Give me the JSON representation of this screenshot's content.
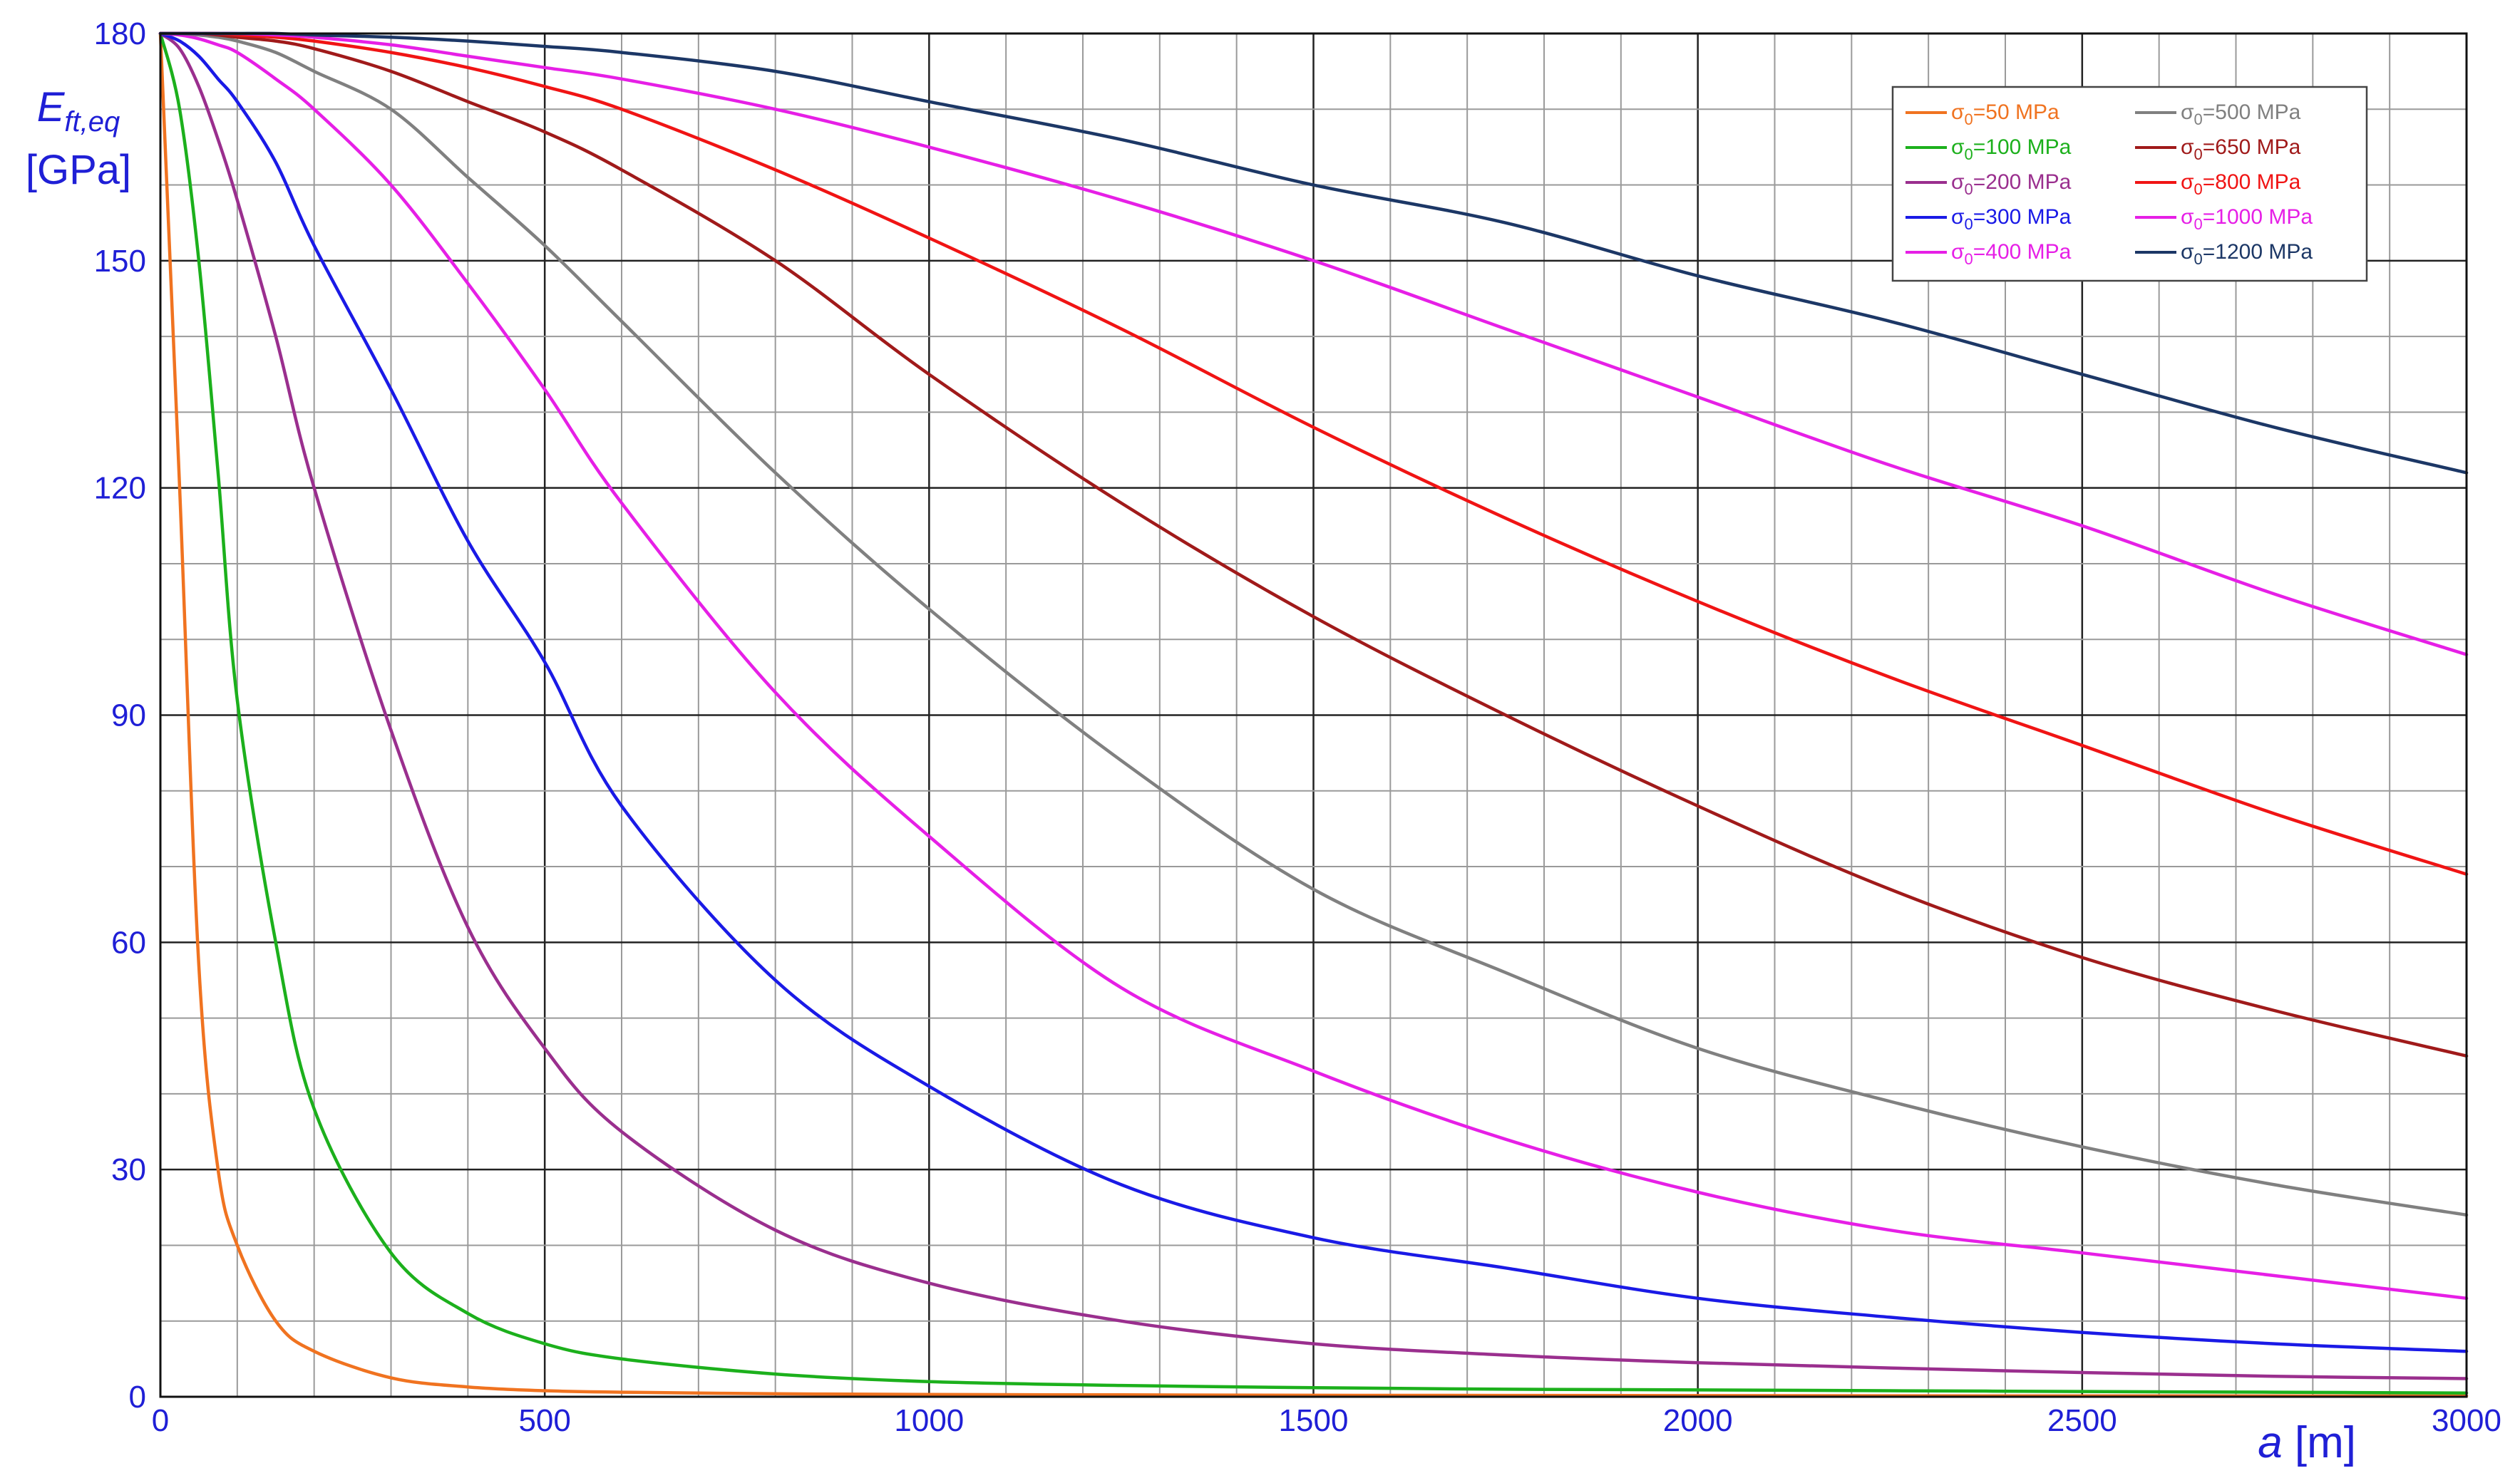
{
  "chart_data": {
    "type": "line",
    "xlabel": {
      "var": "a",
      "unit": " [m]"
    },
    "ylabel": {
      "var": "E",
      "sub": "ft,eq",
      "unit": "[GPa]"
    },
    "xlim": [
      0,
      3000
    ],
    "ylim": [
      0,
      180
    ],
    "x_ticks": [
      "0",
      "500",
      "1000",
      "1500",
      "2000",
      "2500",
      "3000"
    ],
    "y_ticks": [
      "0",
      "30",
      "60",
      "90",
      "120",
      "150",
      "180"
    ],
    "grid": true,
    "legend_position": "top-right",
    "x": [
      0,
      25,
      50,
      75,
      100,
      150,
      200,
      300,
      400,
      500,
      600,
      800,
      1000,
      1250,
      1500,
      1750,
      2000,
      2250,
      2500,
      2750,
      3000
    ],
    "series": [
      {
        "name": "σ0=50 MPa",
        "label_main": "σ",
        "label_sub": "0",
        "label_rest": "=50 MPa",
        "color": "#f07320",
        "values": [
          180,
          120,
          57,
          30,
          20,
          10,
          6,
          2.5,
          1.3,
          0.8,
          0.6,
          0.4,
          0.3,
          0.25,
          0.2,
          0.18,
          0.15,
          0.13,
          0.12,
          0.1,
          0.1
        ]
      },
      {
        "name": "σ0=100 MPa",
        "label_main": "σ",
        "label_sub": "0",
        "label_rest": "=100 MPa",
        "color": "#1cb01c",
        "values": [
          180,
          170,
          150,
          122,
          92,
          60,
          38,
          19,
          11,
          7,
          5,
          3,
          2,
          1.5,
          1.2,
          1.0,
          0.9,
          0.8,
          0.7,
          0.6,
          0.5
        ]
      },
      {
        "name": "σ0=200 MPa",
        "label_main": "σ",
        "label_sub": "0",
        "label_rest": "=200 MPa",
        "color": "#9a2f8e",
        "values": [
          180,
          178,
          173,
          166,
          158,
          140,
          120,
          88,
          62,
          46,
          35,
          22,
          15,
          10,
          7,
          5.5,
          4.5,
          3.8,
          3.2,
          2.7,
          2.4
        ]
      },
      {
        "name": "σ0=300 MPa",
        "label_main": "σ",
        "label_sub": "0",
        "label_rest": "=300 MPa",
        "color": "#1a1ae6",
        "values": [
          180,
          179,
          177,
          174,
          171,
          163,
          152,
          133,
          113,
          97,
          78,
          55,
          41,
          28,
          21,
          17,
          13,
          10.5,
          8.5,
          7,
          6
        ]
      },
      {
        "name": "σ0=400 MPa",
        "label_main": "σ",
        "label_sub": "0",
        "label_rest": "=400 MPa",
        "color": "#e61fe6",
        "values": [
          180,
          179.8,
          179.3,
          178.5,
          177.5,
          174,
          170,
          160,
          147,
          133,
          118,
          93,
          74,
          54,
          43,
          34,
          27,
          22,
          19,
          16,
          13
        ]
      },
      {
        "name": "σ0=500 MPa",
        "label_main": "σ",
        "label_sub": "0",
        "label_rest": "=500 MPa",
        "color": "#808080",
        "values": [
          180,
          180,
          179.8,
          179.5,
          179,
          177.5,
          175,
          170,
          161,
          152,
          142,
          122,
          104,
          84,
          67,
          56,
          46,
          39,
          33,
          28,
          24
        ]
      },
      {
        "name": "σ0=650 MPa",
        "label_main": "σ",
        "label_sub": "0",
        "label_rest": "=650 MPa",
        "color": "#a01a1a",
        "values": [
          180,
          180,
          180,
          179.8,
          179.5,
          179,
          178,
          175,
          171,
          167,
          162,
          150,
          135,
          118,
          103,
          90,
          78,
          67,
          58,
          51,
          45
        ]
      },
      {
        "name": "σ0=800 MPa",
        "label_main": "σ",
        "label_sub": "0",
        "label_rest": "=800 MPa",
        "color": "#f01414",
        "values": [
          180,
          180,
          180,
          180,
          179.8,
          179.5,
          179,
          177.5,
          175.5,
          173,
          170,
          162,
          153,
          141,
          128,
          116,
          105,
          95,
          86,
          77,
          69
        ]
      },
      {
        "name": "σ0=1000 MPa",
        "label_main": "σ",
        "label_sub": "0",
        "label_rest": "=1000 MPa",
        "color": "#e61fe6",
        "values": [
          180,
          180,
          180,
          180,
          180,
          179.8,
          179.5,
          178.5,
          177,
          175.5,
          174,
          170,
          165,
          158,
          150,
          141,
          132,
          123,
          115,
          106,
          98
        ]
      },
      {
        "name": "σ0=1200 MPa",
        "label_main": "σ",
        "label_sub": "0",
        "label_rest": "=1200 MPa",
        "color": "#1c3766",
        "values": [
          180,
          180,
          180,
          180,
          180,
          180,
          179.8,
          179.5,
          179,
          178.3,
          177.5,
          175,
          171,
          166,
          160,
          155,
          148,
          142,
          135,
          128,
          122
        ]
      }
    ],
    "legend_order": [
      0,
      5,
      1,
      6,
      2,
      7,
      3,
      8,
      4,
      9
    ]
  }
}
